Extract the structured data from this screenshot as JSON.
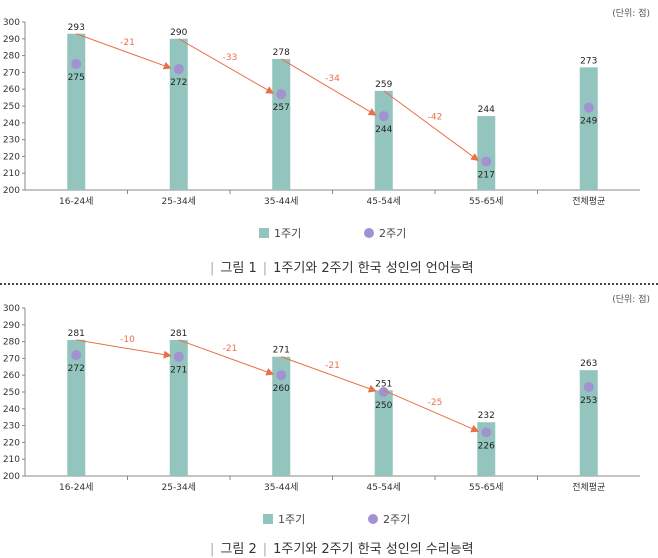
{
  "colors": {
    "cycle1": "#93c4bd",
    "cycle2": "#a292d2",
    "arrow": "#e8704a"
  },
  "chart_data": [
    {
      "type": "bar",
      "title": "1주기와 2주기 한국 성인의 언어능력",
      "figure_label": "그림 1",
      "unit": "(단위: 점)",
      "categories": [
        "16-24세",
        "25-34세",
        "35-44세",
        "45-54세",
        "55-65세",
        "전체평균"
      ],
      "ylim": [
        200,
        300
      ],
      "yticks": [
        200,
        210,
        220,
        230,
        240,
        250,
        260,
        270,
        280,
        290,
        300
      ],
      "series": [
        {
          "name": "1주기",
          "type": "bar",
          "values": [
            293,
            290,
            278,
            259,
            244,
            273
          ]
        },
        {
          "name": "2주기",
          "type": "scatter",
          "values": [
            275,
            272,
            257,
            244,
            217,
            249
          ]
        }
      ],
      "annotations": [
        "-21",
        "-33",
        "-34",
        "-42"
      ],
      "legend": "bottom"
    },
    {
      "type": "bar",
      "title": "1주기와 2주기 한국 성인의 수리능력",
      "figure_label": "그림 2",
      "unit": "(단위: 점)",
      "categories": [
        "16-24세",
        "25-34세",
        "35-44세",
        "45-54세",
        "55-65세",
        "전체평균"
      ],
      "ylim": [
        200,
        300
      ],
      "yticks": [
        200,
        210,
        220,
        230,
        240,
        250,
        260,
        270,
        280,
        290,
        300
      ],
      "series": [
        {
          "name": "1주기",
          "type": "bar",
          "values": [
            281,
            281,
            271,
            251,
            232,
            263
          ]
        },
        {
          "name": "2주기",
          "type": "scatter",
          "values": [
            272,
            271,
            260,
            250,
            226,
            253
          ]
        }
      ],
      "annotations": [
        "-10",
        "-21",
        "-21",
        "-25"
      ],
      "legend": "bottom"
    }
  ]
}
